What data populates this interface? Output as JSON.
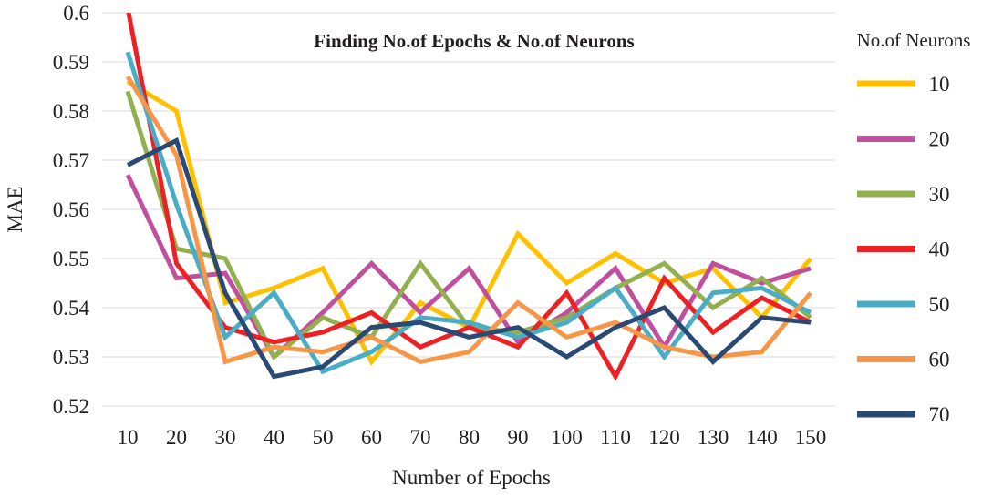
{
  "chart_data": {
    "type": "line",
    "title": "Finding No.of Epochs &  No.of Neurons",
    "xlabel": "Number of Epochs",
    "ylabel": "MAE",
    "ylim": [
      0.52,
      0.6
    ],
    "y_ticks": [
      "0.52",
      "0.53",
      "0.54",
      "0.55",
      "0.56",
      "0.57",
      "0.58",
      "0.59",
      "0.6"
    ],
    "categories": [
      "10",
      "20",
      "30",
      "40",
      "50",
      "60",
      "70",
      "80",
      "90",
      "100",
      "110",
      "120",
      "130",
      "140",
      "150"
    ],
    "grid": "horizontal",
    "legend": {
      "title": "No.of Neurons",
      "position": "right"
    },
    "series": [
      {
        "name": "10",
        "color": "#ffc000",
        "values": [
          0.586,
          0.58,
          0.541,
          0.544,
          0.548,
          0.529,
          0.541,
          0.536,
          0.555,
          0.545,
          0.551,
          0.545,
          0.548,
          0.538,
          0.55
        ]
      },
      {
        "name": "20",
        "color": "#c0509e",
        "values": [
          0.567,
          0.546,
          0.547,
          0.53,
          0.539,
          0.549,
          0.539,
          0.548,
          0.533,
          0.539,
          0.548,
          0.532,
          0.549,
          0.545,
          0.548
        ]
      },
      {
        "name": "30",
        "color": "#92b04f",
        "values": [
          0.584,
          0.552,
          0.55,
          0.53,
          0.538,
          0.534,
          0.549,
          0.536,
          0.535,
          0.538,
          0.544,
          0.549,
          0.54,
          0.546,
          0.538
        ]
      },
      {
        "name": "40",
        "color": "#ed2024",
        "values": [
          0.601,
          0.549,
          0.536,
          0.533,
          0.535,
          0.539,
          0.532,
          0.536,
          0.532,
          0.543,
          0.526,
          0.546,
          0.535,
          0.542,
          0.537
        ]
      },
      {
        "name": "50",
        "color": "#4bacc6",
        "values": [
          0.592,
          0.561,
          0.534,
          0.543,
          0.527,
          0.531,
          0.538,
          0.537,
          0.534,
          0.537,
          0.544,
          0.53,
          0.543,
          0.544,
          0.539
        ]
      },
      {
        "name": "60",
        "color": "#f79646",
        "values": [
          0.587,
          0.571,
          0.529,
          0.532,
          0.531,
          0.534,
          0.529,
          0.531,
          0.541,
          0.534,
          0.537,
          0.532,
          0.53,
          0.531,
          0.543
        ]
      },
      {
        "name": "70",
        "color": "#2a4a73",
        "values": [
          0.569,
          0.574,
          0.543,
          0.526,
          0.528,
          0.536,
          0.537,
          0.534,
          0.536,
          0.53,
          0.536,
          0.54,
          0.529,
          0.538,
          0.537
        ]
      }
    ]
  }
}
